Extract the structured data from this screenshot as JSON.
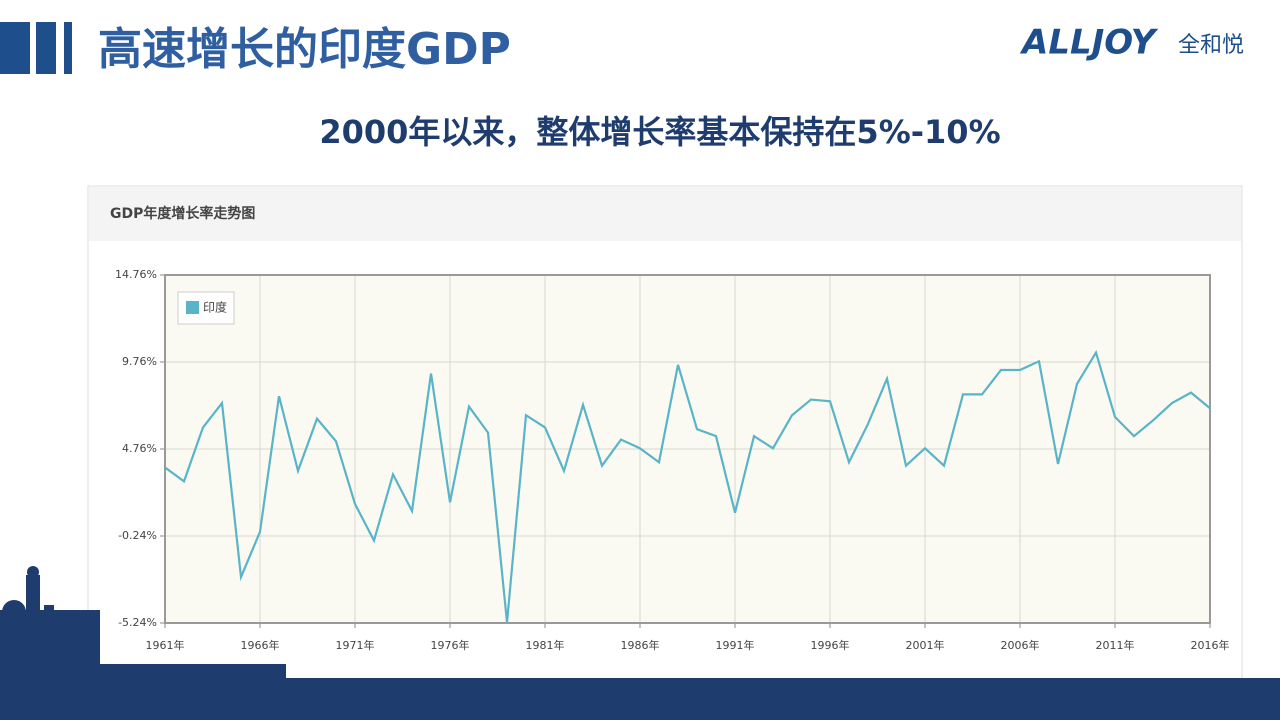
{
  "slide": {
    "title": "高速增长的印度GDP",
    "subtitle": "2000年以来，整体增长率基本保持在5%-10%",
    "logo": "ALLJOY",
    "logo_cn": "全和悦"
  },
  "chart_data": {
    "type": "line",
    "title": "GDP年度增长率走势图",
    "x": [
      1961,
      1962,
      1963,
      1964,
      1965,
      1966,
      1967,
      1968,
      1969,
      1970,
      1971,
      1972,
      1973,
      1974,
      1975,
      1976,
      1977,
      1978,
      1979,
      1980,
      1981,
      1982,
      1983,
      1984,
      1985,
      1986,
      1987,
      1988,
      1989,
      1990,
      1991,
      1992,
      1993,
      1994,
      1995,
      1996,
      1997,
      1998,
      1999,
      2000,
      2001,
      2002,
      2003,
      2004,
      2005,
      2006,
      2007,
      2008,
      2009,
      2010,
      2011,
      2012,
      2013,
      2014,
      2015,
      2016
    ],
    "series": [
      {
        "name": "印度",
        "color": "#5ab4c8",
        "values": [
          3.7,
          2.9,
          6.0,
          7.4,
          -2.6,
          0.0,
          7.8,
          3.5,
          6.5,
          5.2,
          1.6,
          -0.5,
          3.3,
          1.2,
          9.1,
          1.7,
          7.2,
          5.7,
          -5.2,
          6.7,
          6.0,
          3.5,
          7.3,
          3.8,
          5.3,
          4.8,
          4.0,
          9.6,
          5.9,
          5.5,
          1.1,
          5.5,
          4.8,
          6.7,
          7.6,
          7.5,
          4.0,
          6.2,
          8.8,
          3.8,
          4.8,
          3.8,
          7.9,
          7.9,
          9.3,
          9.3,
          9.8,
          3.9,
          8.5,
          10.3,
          6.6,
          5.5,
          6.4,
          7.4,
          8.0,
          7.1
        ]
      }
    ],
    "xlim": [
      1961,
      2016
    ],
    "xticks": [
      {
        "value": 1961,
        "label": "1961年"
      },
      {
        "value": 1966,
        "label": "1966年"
      },
      {
        "value": 1971,
        "label": "1971年"
      },
      {
        "value": 1976,
        "label": "1976年"
      },
      {
        "value": 1981,
        "label": "1981年"
      },
      {
        "value": 1986,
        "label": "1986年"
      },
      {
        "value": 1991,
        "label": "1991年"
      },
      {
        "value": 1996,
        "label": "1996年"
      },
      {
        "value": 2001,
        "label": "2001年"
      },
      {
        "value": 2006,
        "label": "2006年"
      },
      {
        "value": 2011,
        "label": "2011年"
      },
      {
        "value": 2016,
        "label": "2016年"
      }
    ],
    "ylim": [
      -5.24,
      14.76
    ],
    "yticks": [
      {
        "value": -5.24,
        "label": "-5.24%"
      },
      {
        "value": -0.24,
        "label": "-0.24%"
      },
      {
        "value": 4.76,
        "label": "4.76%"
      },
      {
        "value": 9.76,
        "label": "9.76%"
      },
      {
        "value": 14.76,
        "label": "14.76%"
      }
    ],
    "grid": true,
    "legend": "upper left"
  }
}
